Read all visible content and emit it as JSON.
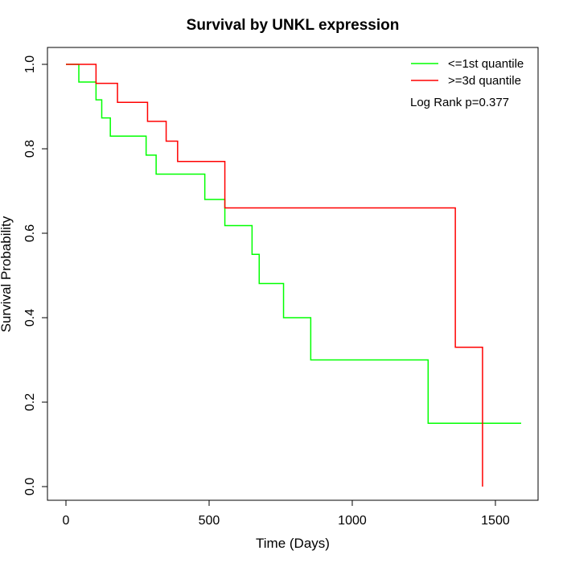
{
  "chart_data": {
    "type": "line",
    "title": "Survival by UNKL expression",
    "xlabel": "Time (Days)",
    "ylabel": "Survival Probability",
    "xlim": [
      0,
      1590
    ],
    "ylim": [
      0,
      1
    ],
    "xticks": [
      0,
      500,
      1000,
      1500
    ],
    "yticks": [
      0.0,
      0.2,
      0.4,
      0.6,
      0.8,
      1.0
    ],
    "ytick_labels": [
      "0.0",
      "0.2",
      "0.4",
      "0.6",
      "0.8",
      "1.0"
    ],
    "xtick_labels": [
      "0",
      "500",
      "1000",
      "1500"
    ],
    "grid": false,
    "legend_position": "top-right",
    "annotation": "Log Rank p=0.377",
    "series": [
      {
        "name": "<=1st quantile",
        "color": "#00ff00",
        "step": "post",
        "x": [
          0,
          45,
          105,
          125,
          155,
          280,
          315,
          485,
          555,
          650,
          675,
          760,
          855,
          1265,
          1590
        ],
        "y": [
          1.0,
          0.958,
          0.916,
          0.873,
          0.83,
          0.785,
          0.74,
          0.68,
          0.618,
          0.55,
          0.481,
          0.4,
          0.3,
          0.15,
          0.15
        ]
      },
      {
        "name": ">=3d quantile",
        "color": "#ff0000",
        "step": "post",
        "x": [
          0,
          105,
          180,
          285,
          350,
          390,
          555,
          1360,
          1455,
          1455
        ],
        "y": [
          1.0,
          0.955,
          0.91,
          0.865,
          0.818,
          0.77,
          0.66,
          0.33,
          0.0,
          0.0
        ]
      }
    ]
  }
}
